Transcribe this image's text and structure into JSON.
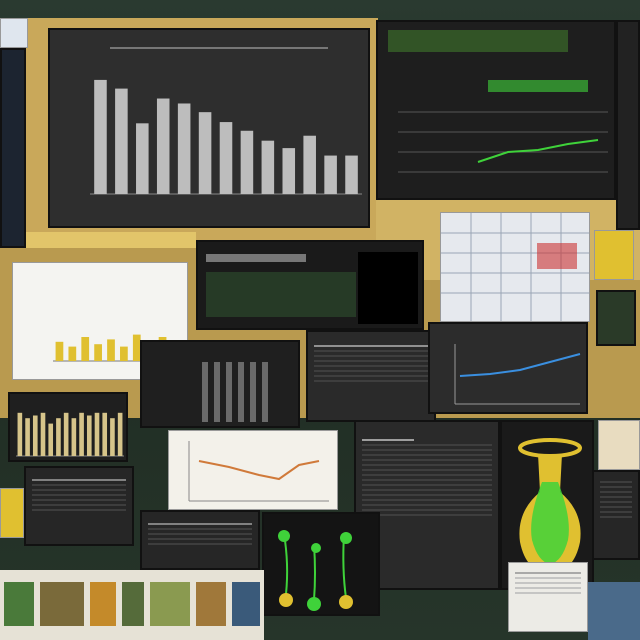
{
  "colors": {
    "board": "#c9a85a",
    "dark_panel": "#2b2b2b",
    "paper": "#eceae2",
    "accent_green": "#3fd23a",
    "accent_yellow": "#e0c030",
    "bar_fill": "#bdbdbd"
  },
  "main_chart": {
    "type": "bar",
    "values": [
      0.92,
      0.85,
      0.57,
      0.77,
      0.73,
      0.66,
      0.58,
      0.51,
      0.43,
      0.37,
      0.47,
      0.31,
      0.31
    ]
  },
  "small_chart": {
    "type": "bar",
    "values": [
      0.8,
      0.7,
      0.75,
      0.8,
      0.6,
      0.7,
      0.8,
      0.7,
      0.8,
      0.75,
      0.8,
      0.8,
      0.7,
      0.8
    ]
  },
  "sketch_chart": {
    "type": "bar",
    "values": [
      0.4,
      0.3,
      0.5,
      0.35,
      0.45,
      0.3,
      0.55,
      0.4,
      0.5
    ]
  },
  "panel_icons": [
    "vase-icon",
    "plant-bulbs-icon"
  ]
}
